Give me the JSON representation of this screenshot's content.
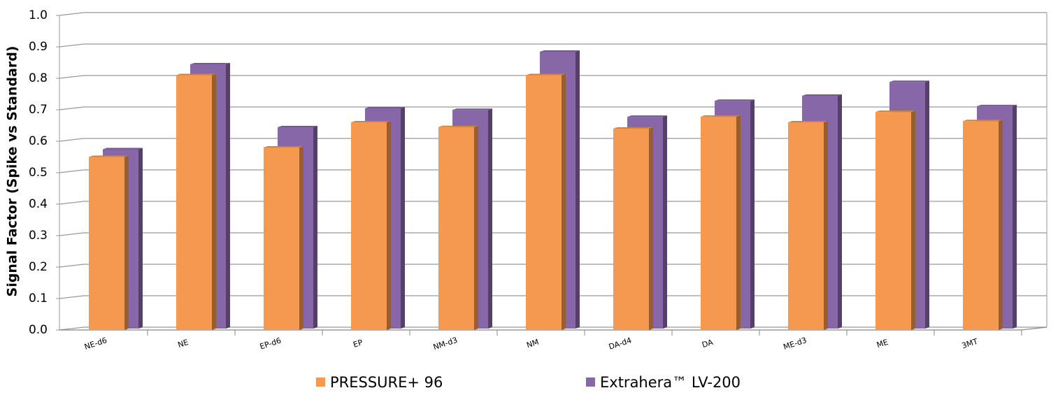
{
  "chart_data": {
    "type": "bar3d",
    "y_label": "Signal Factor (Spike vs Standard)",
    "categories": [
      "NE-d6",
      "NE",
      "EP-d6",
      "EP",
      "NM-d3",
      "NM",
      "DA-d4",
      "DA",
      "ME-d3",
      "ME",
      "3MT"
    ],
    "series": [
      {
        "name": "PRESSURE+ 96",
        "color": "#f4994f",
        "values": [
          0.55,
          0.81,
          0.58,
          0.66,
          0.645,
          0.81,
          0.64,
          0.678,
          0.66,
          0.693,
          0.664
        ]
      },
      {
        "name": "Extrahera™ LV-200",
        "color": "#8767a8",
        "values": [
          0.57,
          0.84,
          0.64,
          0.7,
          0.695,
          0.88,
          0.673,
          0.724,
          0.74,
          0.784,
          0.707
        ]
      }
    ],
    "ylim": [
      0,
      1
    ],
    "yticks": [
      {
        "value": 0,
        "label": "0.0"
      },
      0.1,
      0.2,
      0.3,
      0.4,
      0.5,
      0.6,
      0.7,
      0.8,
      0.9,
      {
        "value": 1,
        "label": "1.0"
      }
    ],
    "grid": true
  }
}
